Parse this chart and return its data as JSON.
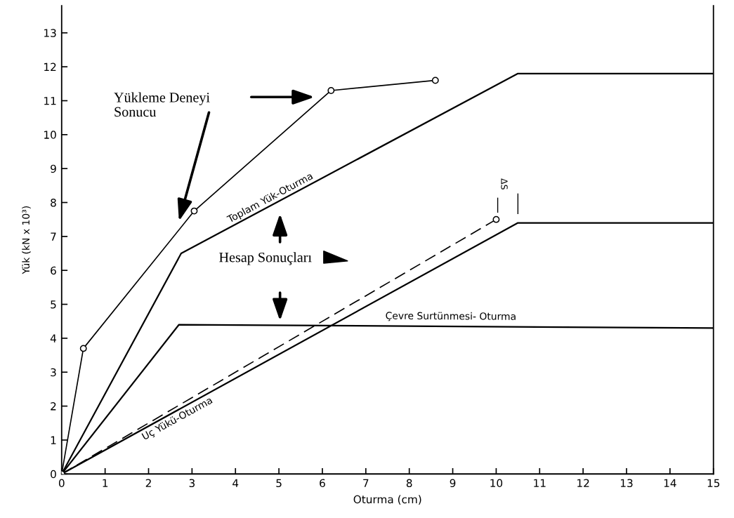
{
  "chart_data": {
    "type": "line",
    "xlabel": "Oturma (cm)",
    "ylabel": "Yük (kN x 10³)",
    "xlim": [
      0,
      15
    ],
    "xticks": [
      0,
      1,
      2,
      3,
      4,
      5,
      6,
      7,
      8,
      9,
      10,
      11,
      12,
      13,
      14,
      15
    ],
    "ylim": [
      0,
      13.8
    ],
    "yticks": [
      0,
      1,
      2,
      3,
      4,
      5,
      6,
      7,
      8,
      9,
      10,
      11,
      12,
      13
    ],
    "grid": false,
    "legend": false,
    "series": [
      {
        "color": "#000000",
        "marker": "circle",
        "line_style": "solid",
        "x": [
          0,
          0.5,
          3.05,
          6.2,
          8.6
        ],
        "values": [
          0,
          3.7,
          7.75,
          11.3,
          11.6
        ]
      },
      {
        "name": "Toplam Yük-Oturma",
        "color": "#000000",
        "line_style": "solid",
        "x": [
          0,
          2.75,
          10.5,
          15
        ],
        "values": [
          0,
          6.5,
          11.8,
          11.8
        ]
      },
      {
        "name": "Çevre Surtünmesi- Oturma",
        "color": "#000000",
        "line_style": "solid",
        "x": [
          0,
          2.7,
          15
        ],
        "values": [
          0,
          4.4,
          4.3
        ]
      },
      {
        "name": "Uç Yükü-Oturma",
        "color": "#000000",
        "line_style": "solid",
        "x": [
          0,
          10.5,
          15
        ],
        "values": [
          0,
          7.4,
          7.4
        ]
      },
      {
        "color": "#000000",
        "marker": "circle",
        "line_style": "dashed",
        "x": [
          0,
          10.0
        ],
        "values": [
          0,
          7.5
        ]
      }
    ],
    "annotations": [
      "Yükleme Deneyi\nSonucu",
      "Hesap Sonuçları",
      "ΔS"
    ]
  }
}
